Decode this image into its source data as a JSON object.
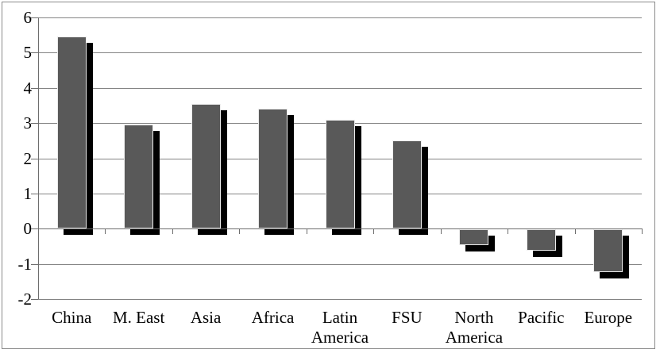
{
  "chart_data": {
    "type": "bar",
    "title": "",
    "xlabel": "",
    "ylabel": "",
    "categories": [
      "China",
      "M. East",
      "Asia",
      "Africa",
      "Latin America",
      "FSU",
      "North America",
      "Pacific",
      "Europe"
    ],
    "values": [
      5.45,
      2.95,
      3.55,
      3.4,
      3.1,
      2.5,
      -0.45,
      -0.6,
      -1.2
    ],
    "ylim": [
      -2,
      6
    ],
    "yticks": [
      6,
      5,
      4,
      3,
      2,
      1,
      0,
      -1,
      -2
    ],
    "ytick_labels": [
      "6",
      "5",
      "4",
      "3",
      "2",
      "1",
      "0",
      "-1",
      "-2"
    ],
    "grid": "horizontal",
    "legend": "none",
    "bar_style": "3d-drop-shadow",
    "bar_color": "#595959",
    "shadow_color": "#000000",
    "gridline_color": "#848484",
    "axis_color": "#6e6e6e",
    "text_color": "#000000",
    "background": "#ffffff",
    "border_color": "#8a8a8a"
  }
}
